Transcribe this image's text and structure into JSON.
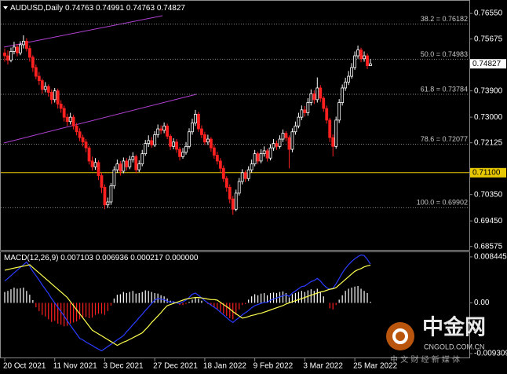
{
  "chart_data": [
    {
      "type": "candlestick",
      "title": "AUDUSD,Daily",
      "categories": [
        "20 Oct 2021",
        null,
        null,
        null,
        null,
        null,
        null,
        null,
        null,
        null,
        null,
        null,
        null,
        null,
        null,
        null,
        "11 Nov 2021",
        null,
        null,
        null,
        null,
        null,
        null,
        null,
        null,
        null,
        null,
        null,
        null,
        null,
        null,
        null,
        "3 Dec 2021",
        null,
        null,
        null,
        null,
        null,
        null,
        null,
        null,
        null,
        null,
        null,
        null,
        null,
        null,
        null,
        "27 Dec 2021",
        null,
        null,
        null,
        null,
        null,
        null,
        null,
        null,
        null,
        null,
        null,
        null,
        null,
        null,
        null,
        "18 Jan 2022",
        null,
        null,
        null,
        null,
        null,
        null,
        null,
        null,
        null,
        null,
        null,
        null,
        null,
        null,
        null,
        "9 Feb 2022",
        null,
        null,
        null,
        null,
        null,
        null,
        null,
        null,
        null,
        null,
        null,
        null,
        null,
        null,
        null,
        "3 Mar 2022",
        null,
        null,
        null,
        null,
        null,
        null,
        null,
        null,
        null,
        null,
        null,
        null,
        null,
        null,
        null,
        "25 Mar 2022",
        null,
        null,
        null,
        null,
        null
      ],
      "open": [
        0.752,
        0.751,
        0.7495,
        0.7525,
        0.754,
        0.752,
        0.7548,
        0.756,
        0.7535,
        0.7505,
        0.747,
        0.744,
        0.7425,
        0.7395,
        0.7405,
        0.7385,
        0.736,
        0.739,
        0.7345,
        0.733,
        0.73,
        0.7285,
        0.73,
        0.727,
        0.725,
        0.723,
        0.7215,
        0.7195,
        0.715,
        0.713,
        0.7145,
        0.71,
        0.706,
        0.7,
        0.701,
        0.7065,
        0.712,
        0.714,
        0.7115,
        0.715,
        0.713,
        0.7155,
        0.7165,
        0.712,
        0.714,
        0.7175,
        0.721,
        0.722,
        0.7205,
        0.724,
        0.726,
        0.7255,
        0.727,
        0.7235,
        0.72,
        0.7215,
        0.719,
        0.7165,
        0.718,
        0.72,
        0.725,
        0.728,
        0.731,
        0.726,
        0.724,
        0.7215,
        0.7225,
        0.7195,
        0.717,
        0.715,
        0.7125,
        0.709,
        0.706,
        0.702,
        0.6985,
        0.704,
        0.708,
        0.711,
        0.709,
        0.712,
        0.714,
        0.7175,
        0.715,
        0.7175,
        0.7185,
        0.716,
        0.7195,
        0.721,
        0.72,
        0.7225,
        0.7245,
        0.723,
        0.719,
        0.725,
        0.727,
        0.73,
        0.7325,
        0.7315,
        0.735,
        0.738,
        0.736,
        0.74,
        0.7365,
        0.733,
        0.729,
        0.723,
        0.72,
        0.729,
        0.735,
        0.74,
        0.742,
        0.744,
        0.747,
        0.751,
        0.753,
        0.75,
        0.751,
        0.74763
      ],
      "high": [
        0.7535,
        0.7528,
        0.7538,
        0.7558,
        0.755,
        0.756,
        0.758,
        0.757,
        0.7545,
        0.7512,
        0.748,
        0.7455,
        0.7432,
        0.742,
        0.7412,
        0.7395,
        0.74,
        0.7398,
        0.7358,
        0.734,
        0.7312,
        0.7315,
        0.7308,
        0.728,
        0.7262,
        0.724,
        0.7225,
        0.7202,
        0.7165,
        0.716,
        0.7152,
        0.711,
        0.707,
        0.7025,
        0.7075,
        0.7132,
        0.7155,
        0.715,
        0.7162,
        0.716,
        0.7168,
        0.718,
        0.7172,
        0.7152,
        0.7188,
        0.7222,
        0.7238,
        0.7232,
        0.7252,
        0.7275,
        0.7272,
        0.7282,
        0.7278,
        0.7242,
        0.7228,
        0.7225,
        0.7198,
        0.7195,
        0.7215,
        0.7262,
        0.7295,
        0.7325,
        0.7318,
        0.7272,
        0.725,
        0.724,
        0.7232,
        0.7205,
        0.7182,
        0.716,
        0.7135,
        0.7098,
        0.707,
        0.703,
        0.7052,
        0.7092,
        0.7122,
        0.7118,
        0.7132,
        0.7155,
        0.7188,
        0.7182,
        0.719,
        0.72,
        0.7192,
        0.7208,
        0.7225,
        0.722,
        0.7238,
        0.7258,
        0.7252,
        0.7238,
        0.7262,
        0.7285,
        0.7315,
        0.734,
        0.7338,
        0.7365,
        0.7395,
        0.7392,
        0.7436,
        0.741,
        0.7372,
        0.734,
        0.7298,
        0.7242,
        0.7302,
        0.7362,
        0.7412,
        0.7435,
        0.7458,
        0.7485,
        0.7525,
        0.7545,
        0.7538,
        0.7525,
        0.7518,
        0.74991
      ],
      "low": [
        0.749,
        0.748,
        0.7488,
        0.7515,
        0.7508,
        0.7512,
        0.7535,
        0.7525,
        0.749,
        0.7455,
        0.743,
        0.741,
        0.738,
        0.7385,
        0.737,
        0.7345,
        0.735,
        0.733,
        0.7315,
        0.7285,
        0.727,
        0.7275,
        0.7258,
        0.7238,
        0.7218,
        0.72,
        0.718,
        0.7138,
        0.7118,
        0.712,
        0.7085,
        0.704,
        0.6985,
        0.699,
        0.7,
        0.7055,
        0.711,
        0.71,
        0.7108,
        0.7118,
        0.7122,
        0.7145,
        0.7108,
        0.7112,
        0.7132,
        0.7168,
        0.7198,
        0.7195,
        0.7198,
        0.723,
        0.7242,
        0.7245,
        0.7225,
        0.7188,
        0.719,
        0.7178,
        0.7152,
        0.7158,
        0.7172,
        0.7192,
        0.724,
        0.727,
        0.725,
        0.7228,
        0.7205,
        0.7205,
        0.7182,
        0.7158,
        0.7138,
        0.711,
        0.7078,
        0.7045,
        0.7005,
        0.6966,
        0.6978,
        0.7032,
        0.707,
        0.7078,
        0.7082,
        0.711,
        0.7132,
        0.714,
        0.7142,
        0.7165,
        0.7148,
        0.7152,
        0.7185,
        0.7188,
        0.7192,
        0.7215,
        0.7218,
        0.7125,
        0.718,
        0.724,
        0.7262,
        0.729,
        0.7302,
        0.7305,
        0.734,
        0.7345,
        0.735,
        0.7352,
        0.7318,
        0.7278,
        0.7215,
        0.7166,
        0.7192,
        0.728,
        0.734,
        0.739,
        0.741,
        0.7432,
        0.7462,
        0.75,
        0.7488,
        0.749,
        0.7465,
        0.74763
      ],
      "close": [
        0.751,
        0.7495,
        0.7525,
        0.754,
        0.752,
        0.7548,
        0.756,
        0.7535,
        0.7505,
        0.747,
        0.744,
        0.7425,
        0.7395,
        0.7405,
        0.7385,
        0.736,
        0.739,
        0.7345,
        0.733,
        0.73,
        0.7285,
        0.73,
        0.727,
        0.725,
        0.723,
        0.7215,
        0.7195,
        0.715,
        0.713,
        0.7145,
        0.71,
        0.706,
        0.7,
        0.701,
        0.7065,
        0.712,
        0.714,
        0.7115,
        0.715,
        0.713,
        0.7155,
        0.7165,
        0.712,
        0.714,
        0.7175,
        0.721,
        0.722,
        0.7205,
        0.724,
        0.726,
        0.7255,
        0.727,
        0.7235,
        0.72,
        0.7215,
        0.719,
        0.7165,
        0.718,
        0.72,
        0.725,
        0.728,
        0.731,
        0.726,
        0.724,
        0.7215,
        0.7225,
        0.7195,
        0.717,
        0.715,
        0.7125,
        0.709,
        0.706,
        0.702,
        0.6985,
        0.704,
        0.708,
        0.711,
        0.709,
        0.712,
        0.714,
        0.7175,
        0.715,
        0.7175,
        0.7185,
        0.716,
        0.7195,
        0.721,
        0.72,
        0.7225,
        0.7245,
        0.723,
        0.719,
        0.725,
        0.727,
        0.73,
        0.7325,
        0.7315,
        0.735,
        0.738,
        0.736,
        0.74,
        0.7365,
        0.733,
        0.729,
        0.723,
        0.72,
        0.729,
        0.735,
        0.74,
        0.742,
        0.744,
        0.747,
        0.751,
        0.753,
        0.75,
        0.751,
        0.74763,
        0.74827
      ],
      "up_color": "#ffffff",
      "down_color": "#ff2020",
      "ylim": [
        0.6846,
        0.7701
      ],
      "yticks": [
        {
          "value": 0.7655,
          "label": "0.76550"
        },
        0.75675,
        {
          "value": 0.739,
          "label": "0.73900"
        },
        {
          "value": 0.73,
          "label": "0.73000"
        },
        0.72125,
        {
          "value": 0.7035,
          "label": "0.70350"
        },
        {
          "value": 0.6945,
          "label": "0.69450"
        },
        0.68575
      ],
      "fib_levels": [
        {
          "value": 0.76182,
          "label": "38.2 = 0.76182"
        },
        {
          "value": 0.74983,
          "label": "50.0 = 0.74983"
        },
        {
          "value": 0.73784,
          "label": "61.8 = 0.73784"
        },
        {
          "value": 0.72077,
          "label": "78.6 = 0.72077"
        },
        {
          "value": 0.69902,
          "label": "100.0 = 0.69902"
        }
      ],
      "hline": {
        "value": 0.711,
        "label": "0.71100",
        "color": "#e8c800"
      },
      "grid": false
    },
    {
      "type": "macd",
      "title": "MACD(12,26,9)",
      "histogram": [
        0.002,
        0.0022,
        0.0025,
        0.0028,
        0.0026,
        0.0027,
        0.0028,
        0.0022,
        0.0015,
        0.0005,
        -0.0008,
        -0.0015,
        -0.0022,
        -0.0025,
        -0.003,
        -0.0035,
        -0.0033,
        -0.0038,
        -0.004,
        -0.0043,
        -0.0042,
        -0.0038,
        -0.0036,
        -0.0034,
        -0.003,
        -0.0028,
        -0.0026,
        -0.0028,
        -0.0027,
        -0.0022,
        -0.002,
        -0.002,
        -0.0022,
        -0.0015,
        -0.0005,
        0.0008,
        0.0015,
        0.0016,
        0.002,
        0.0018,
        0.002,
        0.0022,
        0.0017,
        0.0018,
        0.002,
        0.0023,
        0.0022,
        0.002,
        0.0018,
        0.0017,
        0.0014,
        0.0012,
        0.0008,
        0.0004,
        0.0003,
        0.0001,
        -0.0004,
        -0.0004,
        -0.0002,
        0.0002,
        0.0006,
        0.001,
        0.0008,
        0.0004,
        0,
        -0.0002,
        -0.0005,
        -0.0008,
        -0.0012,
        -0.0016,
        -0.002,
        -0.0024,
        -0.0028,
        -0.003,
        -0.0022,
        -0.0012,
        -0.0004,
        -0.0002,
        0.0006,
        0.0012,
        0.0016,
        0.0014,
        0.0017,
        0.0018,
        0.0014,
        0.0018,
        0.0019,
        0.0018,
        0.002,
        0.0021,
        0.0018,
        0.001,
        0.0016,
        0.0018,
        0.002,
        0.0022,
        0.002,
        0.0023,
        0.0025,
        0.0022,
        0.0026,
        0.002,
        0.0012,
        0,
        -0.001,
        -0.0012,
        -0.0004,
        0.0006,
        0.0014,
        0.0022,
        0.0026,
        0.0028,
        0.003,
        0.0031,
        0.0026,
        0.0022,
        0.0018,
        0.000217
      ],
      "macd": [
        0.004,
        0.0045,
        0.005,
        0.0055,
        0.006,
        0.0065,
        0.007,
        0.0075,
        0.0067,
        0.0058,
        0.005,
        0.0042,
        0.0033,
        0.0025,
        0.0017,
        0.0008,
        0,
        -0.0008,
        -0.0016,
        -0.0024,
        -0.0033,
        -0.0041,
        -0.0049,
        -0.0057,
        -0.0065,
        -0.0068,
        -0.0072,
        -0.0075,
        -0.0078,
        -0.0082,
        -0.0085,
        -0.0088,
        -0.0084,
        -0.008,
        -0.0076,
        -0.0072,
        -0.0068,
        -0.0064,
        -0.006,
        -0.0053,
        -0.0047,
        -0.004,
        -0.0034,
        -0.0027,
        -0.0021,
        -0.0014,
        -0.0008,
        -0.0001,
        0.0005,
        0.0008,
        0.0007,
        0.0006,
        0.0003,
        0.0001,
        0.0002,
        0,
        -0.0001,
        0.0002,
        0.0005,
        0.001,
        0.0016,
        0.0018,
        0.0014,
        0.0009,
        0.0004,
        0,
        -0.0004,
        -0.0008,
        -0.0012,
        -0.0017,
        -0.0022,
        -0.0027,
        -0.0032,
        -0.0036,
        -0.0031,
        -0.0027,
        -0.0022,
        -0.0018,
        -0.0014,
        -0.0009,
        -0.0005,
        -0.0003,
        -0.0001,
        0.0001,
        0.0001,
        0.0005,
        0.0007,
        0.0009,
        0.0011,
        0.0013,
        0.0015,
        0.0012,
        0.0018,
        0.0022,
        0.0026,
        0.003,
        0.0031,
        0.0035,
        0.0039,
        0.0041,
        0.0045,
        0.004,
        0.0033,
        0.0028,
        0.0025,
        0.0027,
        0.0035,
        0.0045,
        0.0055,
        0.0063,
        0.007,
        0.0076,
        0.0081,
        0.0085,
        0.0088,
        0.0087,
        0.008,
        0.007103
      ],
      "signal": [
        0.006,
        0.00613,
        0.00625,
        0.00638,
        0.0065,
        0.00663,
        0.00675,
        0.00688,
        0.007,
        0.0065,
        0.006,
        0.0055,
        0.005,
        0.0045,
        0.004,
        0.0035,
        0.003,
        0.0025,
        0.002,
        0.0015,
        0.001,
        0.00025,
        -0.0005,
        -0.00125,
        -0.002,
        -0.00275,
        -0.0035,
        -0.00425,
        -0.005,
        -0.00535,
        -0.0057,
        -0.00605,
        -0.0064,
        -0.00675,
        -0.0071,
        -0.00745,
        -0.0078,
        -0.0075,
        -0.0072,
        -0.007,
        -0.0067,
        -0.0064,
        -0.0061,
        -0.0058,
        -0.0055,
        -0.0049,
        -0.0043,
        -0.0036,
        -0.003,
        -0.0024,
        -0.0018,
        -0.0011,
        -0.0005,
        -0.0003,
        -0.0001,
        0.0001,
        0.0003,
        0.0005,
        0.0007,
        0.0008,
        0.0009,
        0.001,
        0.001,
        0.0009,
        0.0008,
        0.0007,
        0.0006,
        0.0006,
        0.0005,
        0.0001,
        -0.0003,
        -0.0007,
        -0.0011,
        -0.0016,
        -0.002,
        -0.0024,
        -0.0028,
        -0.0027,
        -0.0025,
        -0.0023,
        -0.0022,
        -0.002,
        -0.0019,
        -0.0017,
        -0.0015,
        -0.0013,
        -0.0011,
        -0.0009,
        -0.0007,
        -0.0005,
        -0.0002,
        0,
        0.0002,
        0.0004,
        0.0006,
        0.0008,
        0.001,
        0.0012,
        0.0014,
        0.0016,
        0.0018,
        0.002,
        0.0021,
        0.0023,
        0.0025,
        0.0026,
        0.0028,
        0.0033,
        0.0038,
        0.0043,
        0.0048,
        0.0053,
        0.0058,
        0.0061,
        0.0063,
        0.0066,
        0.0068,
        0.006936
      ],
      "pos_color": "#ffffff",
      "neg_color": "#ff2020",
      "macd_color": "#2a3cff",
      "signal_color": "#ffff50",
      "extra_value": {
        "value": 0,
        "label": "0.000000"
      },
      "ylim": [
        -0.01017,
        0.0093
      ],
      "yticks": [
        0.008445,
        {
          "value": 0,
          "label": "0.00"
        },
        -0.009309
      ]
    }
  ],
  "watermark": {
    "brand": "中金网",
    "domain": "CNGOLD.COM.CN",
    "slogan": "中 文 财 经 新 媒 体"
  }
}
